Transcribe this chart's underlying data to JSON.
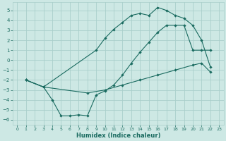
{
  "xlabel": "Humidex (Indice chaleur)",
  "xlim": [
    -0.5,
    23.5
  ],
  "ylim": [
    -6.5,
    5.8
  ],
  "xticks": [
    0,
    1,
    2,
    3,
    4,
    5,
    6,
    7,
    8,
    9,
    10,
    11,
    12,
    13,
    14,
    15,
    16,
    17,
    18,
    19,
    20,
    21,
    22,
    23
  ],
  "yticks": [
    -6,
    -5,
    -4,
    -3,
    -2,
    -1,
    0,
    1,
    2,
    3,
    4,
    5
  ],
  "bg_color": "#cde8e4",
  "grid_color": "#aacfcb",
  "line_color": "#1a6b60",
  "line1_x": [
    1,
    3,
    9,
    10,
    11,
    12,
    13,
    14,
    15,
    16,
    17,
    18,
    19,
    20,
    21,
    22
  ],
  "line1_y": [
    -2.0,
    -2.7,
    1.0,
    2.2,
    3.1,
    3.8,
    4.5,
    4.7,
    4.5,
    5.3,
    5.0,
    4.5,
    4.2,
    3.5,
    2.0,
    -0.7
  ],
  "line2_x": [
    1,
    3,
    4,
    5,
    6,
    7,
    8,
    9,
    10,
    11,
    12,
    13,
    14,
    15,
    16,
    17,
    18,
    19,
    20,
    21,
    22
  ],
  "line2_y": [
    -2.0,
    -2.7,
    -4.0,
    -5.6,
    -5.6,
    -5.5,
    -5.6,
    -3.5,
    -3.1,
    -2.5,
    -1.5,
    -0.3,
    0.8,
    1.8,
    2.8,
    3.5,
    3.5,
    3.5,
    1.0,
    1.0,
    1.0
  ],
  "line3_x": [
    1,
    3,
    8,
    10,
    12,
    14,
    16,
    18,
    20,
    21,
    22
  ],
  "line3_y": [
    -2.0,
    -2.7,
    -3.3,
    -3.0,
    -2.5,
    -2.0,
    -1.5,
    -1.0,
    -0.5,
    -0.3,
    -1.2
  ]
}
